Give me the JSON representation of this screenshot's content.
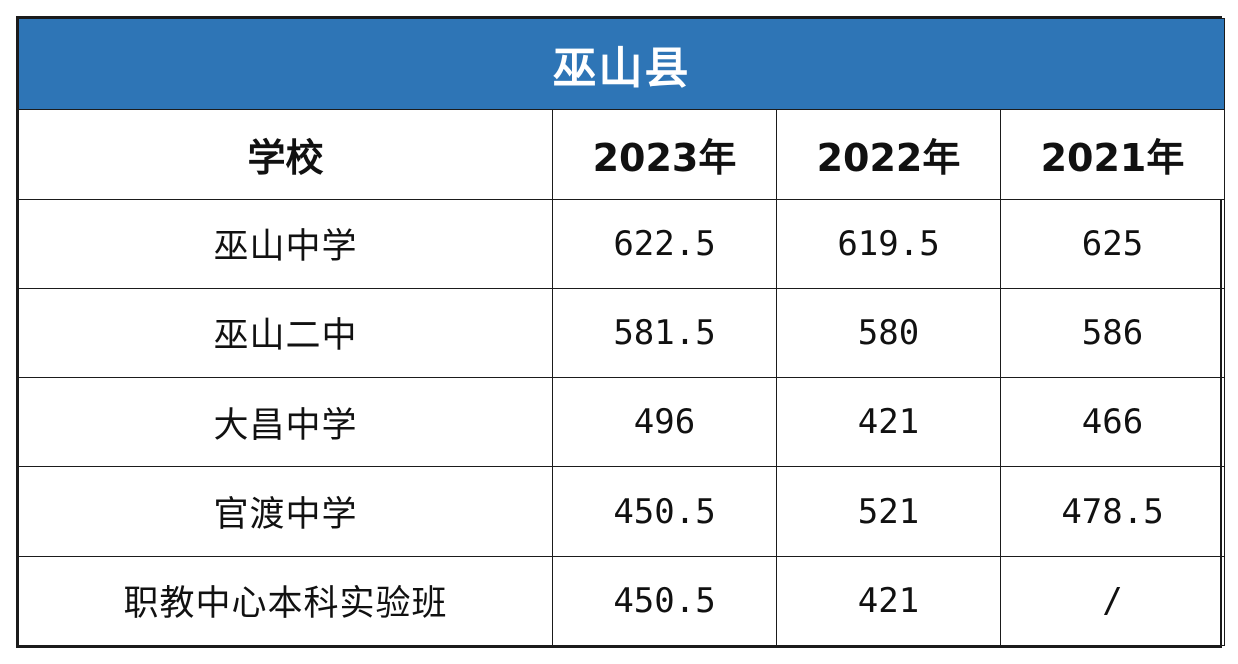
{
  "title": "巫山县",
  "headers": [
    "学校",
    "2023年",
    "2022年",
    "2021年"
  ],
  "rows": [
    {
      "school": "巫山中学",
      "y2023": "622.5",
      "y2022": "619.5",
      "y2021": "625"
    },
    {
      "school": "巫山二中",
      "y2023": "581.5",
      "y2022": "580",
      "y2021": "586"
    },
    {
      "school": "大昌中学",
      "y2023": "496",
      "y2022": "421",
      "y2021": "466"
    },
    {
      "school": "官渡中学",
      "y2023": "450.5",
      "y2022": "521",
      "y2021": "478.5"
    },
    {
      "school": "职教中心本科实验班",
      "y2023": "450.5",
      "y2022": "421",
      "y2021": "/"
    }
  ],
  "colors": {
    "title_bg": "#2e75b6",
    "title_text": "#ffffff",
    "border": "#1b1b1b"
  }
}
